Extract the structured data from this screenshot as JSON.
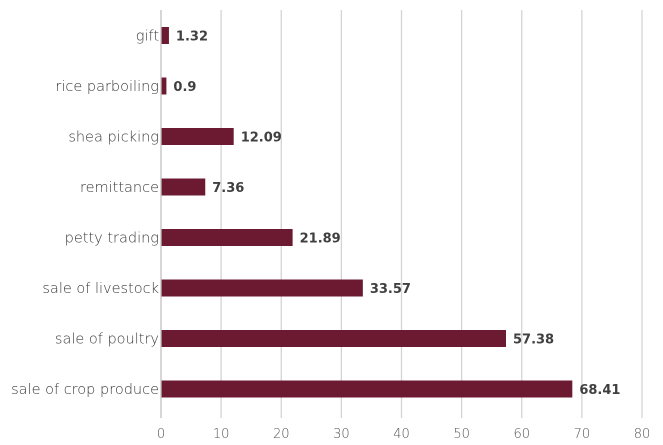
{
  "chart_data": {
    "type": "bar",
    "orientation": "horizontal",
    "title": "",
    "xlabel": "",
    "ylabel": "",
    "categories": [
      "gift",
      "rice parboiling",
      "shea picking",
      "remittance",
      "petty trading",
      "sale of livestock",
      "sale of poultry",
      "sale of crop produce"
    ],
    "values": [
      1.32,
      0.9,
      12.09,
      7.36,
      21.89,
      33.57,
      57.38,
      68.41
    ],
    "data_labels": [
      "1.32",
      "0.9",
      "12.09",
      "7.36",
      "21.89",
      "33.57",
      "57.38",
      "68.41"
    ],
    "xlim": [
      0,
      80
    ],
    "xticks": [
      0,
      10,
      20,
      30,
      40,
      50,
      60,
      70,
      80
    ],
    "xtick_labels": [
      "0",
      "10",
      "20",
      "30",
      "40",
      "50",
      "60",
      "70",
      "80"
    ],
    "grid": "vertical",
    "legend": "none",
    "colors": {
      "bar": "#6b1a32",
      "grid": "#d4d4d4",
      "text": "#3a3a3a",
      "data_label": "#404040"
    }
  }
}
